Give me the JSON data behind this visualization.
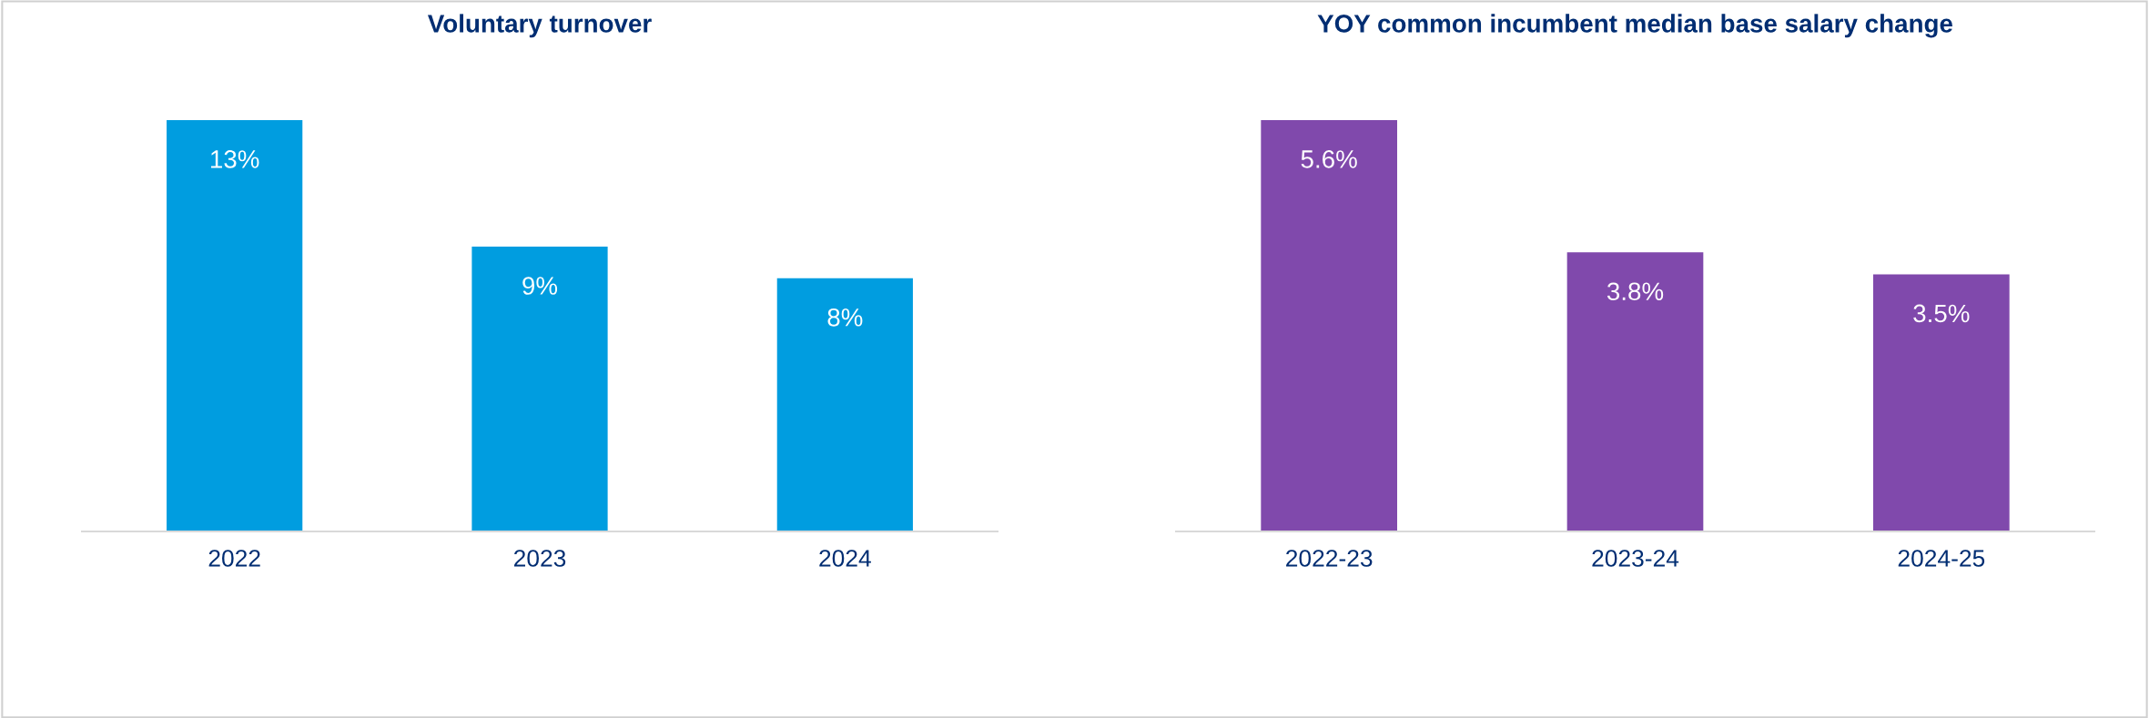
{
  "chart_data": [
    {
      "type": "bar",
      "title": "Voluntary turnover",
      "categories": [
        "2022",
        "2023",
        "2024"
      ],
      "values": [
        13,
        9,
        8
      ],
      "value_labels": [
        "13%",
        "9%",
        "8%"
      ],
      "color": "#009de0",
      "tick_labels": "x"
    },
    {
      "type": "bar",
      "title": "YOY common incumbent median base salary change",
      "categories": [
        "2022-23",
        "2023-24",
        "2024-25"
      ],
      "values": [
        5.6,
        3.8,
        3.5
      ],
      "value_labels": [
        "5.6%",
        "3.8%",
        "3.5%"
      ],
      "color": "#8049ac",
      "tick_labels": "x"
    }
  ]
}
